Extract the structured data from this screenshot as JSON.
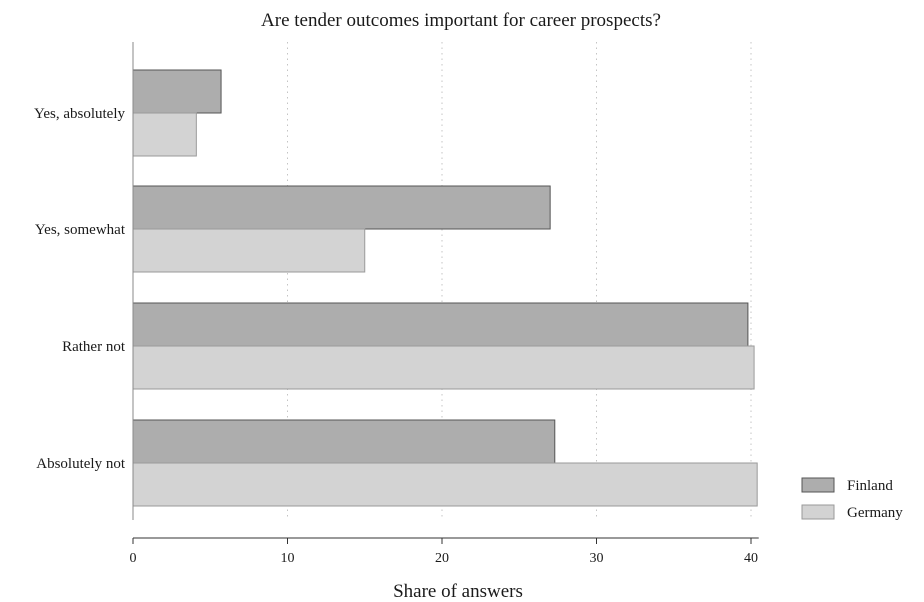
{
  "chart_data": {
    "type": "bar",
    "orientation": "horizontal",
    "title": "Are tender outcomes important for career prospects?",
    "xlabel": "Share of answers",
    "ylabel": "",
    "xlim": [
      0,
      40.5
    ],
    "xticks": [
      0,
      10,
      20,
      30,
      40
    ],
    "grid": true,
    "legend_position": "bottom-right",
    "categories": [
      "Yes, absolutely",
      "Yes, somewhat",
      "Rather not",
      "Absolutely not"
    ],
    "series": [
      {
        "name": "Finland",
        "color": "#adadad",
        "values": [
          5.7,
          27.0,
          39.8,
          27.3
        ]
      },
      {
        "name": "Germany",
        "color": "#d3d3d3",
        "values": [
          4.1,
          15.0,
          40.2,
          40.4
        ]
      }
    ]
  }
}
